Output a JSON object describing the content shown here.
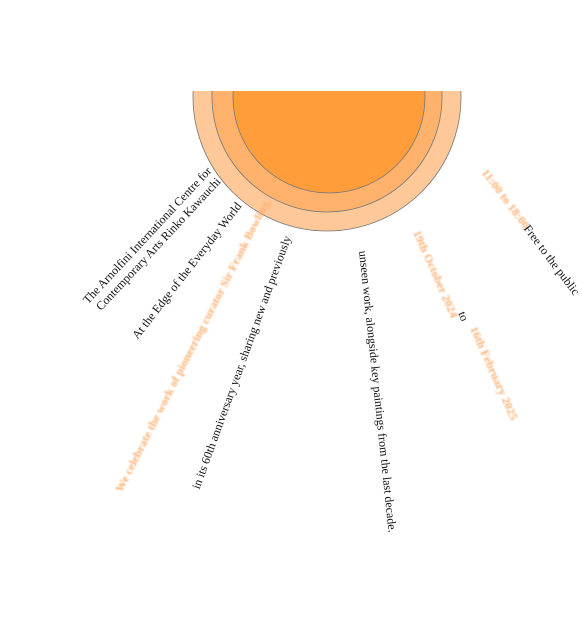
{
  "poster": {
    "colors": {
      "sun_core": "#ff9d3b",
      "sun_mid": "#ffb26c",
      "sun_outer": "#ffc899",
      "accent_text": "#ffb173",
      "text": "#111111"
    },
    "venue_line1": "The Arnolfini International Centre for",
    "venue_line2": "Contemporary Arts Rinko Kawauchi",
    "exhibition_title": "At the Edge of the Everyday World",
    "highlight_celebrate": "We celebrate the work of pioneering curator Sir Frank Bowling,",
    "anniversary": "in its 60th anniversary year, sharing new and previously",
    "unseen_work": "unseen work, alongside key paintings from the last decade.",
    "dates": "19th October 2024",
    "dates_to": "to",
    "dates_end": "16th February 2025",
    "hours": "11:00 to 18:00",
    "admission": "Free to the public"
  }
}
